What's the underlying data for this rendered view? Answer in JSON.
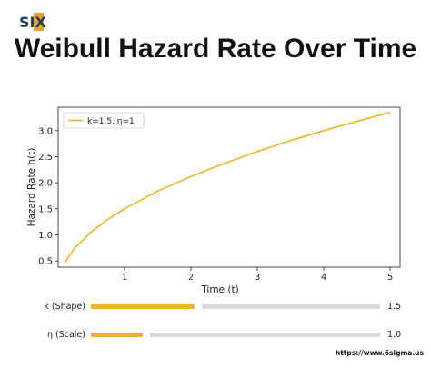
{
  "brand": {
    "logo_text": "SIX",
    "logo_color": "#1f3f5b",
    "accent": "#e8a224"
  },
  "title": "Weibull Hazard Rate Over Time",
  "chart_data": {
    "type": "line",
    "title": "Weibull Hazard Rate Over Time",
    "xlabel": "Time (t)",
    "ylabel": "Hazard Rate h(t)",
    "xlim": [
      0,
      5.15
    ],
    "ylim": [
      0.38,
      3.45
    ],
    "xticks": [
      1,
      2,
      3,
      4,
      5
    ],
    "yticks": [
      0.5,
      1.0,
      1.5,
      2.0,
      2.5,
      3.0
    ],
    "grid": false,
    "legend_position": "top-left",
    "series": [
      {
        "name": "k=1.5, η=1",
        "color": "#f0b323",
        "x": [
          0.1,
          0.25,
          0.5,
          0.75,
          1.0,
          1.5,
          2.0,
          2.5,
          3.0,
          3.5,
          4.0,
          4.5,
          5.0
        ],
        "y": [
          0.47,
          0.75,
          1.06,
          1.3,
          1.5,
          1.84,
          2.12,
          2.37,
          2.6,
          2.81,
          3.0,
          3.18,
          3.35
        ]
      }
    ]
  },
  "sliders": [
    {
      "label": "k (Shape)",
      "value": "1.5",
      "fill": 0.36
    },
    {
      "label": "η (Scale)",
      "value": "1.0",
      "fill": 0.18
    }
  ],
  "credit": "https://www.6sigma.us"
}
